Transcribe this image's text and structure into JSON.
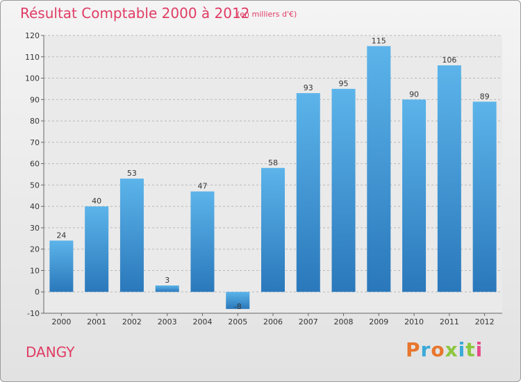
{
  "header": {
    "title": "Résultat Comptable 2000 à 2012",
    "subtitle": "(en milliers d'€)"
  },
  "footer": {
    "place": "DANGY",
    "brand": "Proxiti",
    "brand_letter_colors": [
      "#e8762d",
      "#3aa9d8",
      "#e8762d",
      "#8cc63f",
      "#3aa9d8",
      "#8cc63f",
      "#e84a8a"
    ]
  },
  "colors": {
    "bar_light": "#5cb4ea",
    "bar_dark": "#2a78bb",
    "title": "#e03c64"
  },
  "chart_data": {
    "type": "bar",
    "title": "Résultat Comptable 2000 à 2012",
    "subtitle": "(en milliers d'€)",
    "xlabel": "",
    "ylabel": "",
    "categories": [
      "2000",
      "2001",
      "2002",
      "2003",
      "2004",
      "2005",
      "2006",
      "2007",
      "2008",
      "2009",
      "2010",
      "2011",
      "2012"
    ],
    "values": [
      24,
      40,
      53,
      3,
      47,
      -8,
      58,
      93,
      95,
      115,
      90,
      106,
      89
    ],
    "data_labels": [
      "24",
      "40",
      "53",
      "3",
      "47",
      "-8",
      "58",
      "93",
      "95",
      "115",
      "90",
      "106",
      "89"
    ],
    "ylim": [
      -10,
      120
    ],
    "yticks": [
      -10,
      0,
      10,
      20,
      30,
      40,
      50,
      60,
      70,
      80,
      90,
      100,
      110,
      120
    ],
    "grid": "horizontal-dashed"
  }
}
